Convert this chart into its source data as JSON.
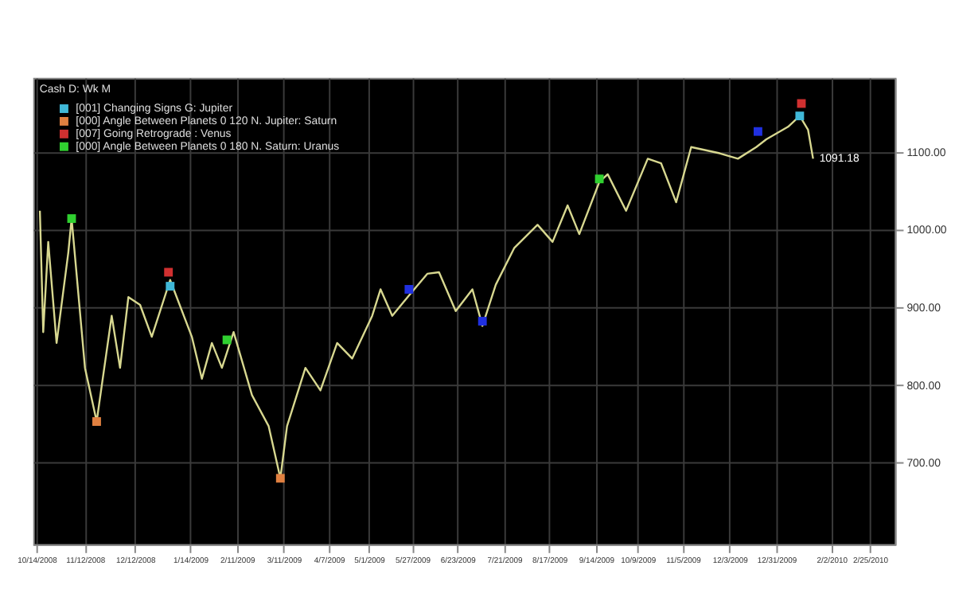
{
  "chart_data": {
    "type": "line",
    "title": "Cash D: Wk M",
    "x": [
      "2008-10-16",
      "2008-10-18",
      "2008-10-21",
      "2008-10-26",
      "2008-11-02",
      "2008-11-04",
      "2008-11-12",
      "2008-11-19",
      "2008-11-28",
      "2008-12-03",
      "2008-12-08",
      "2008-12-15",
      "2008-12-22",
      "2009-01-02",
      "2009-01-15",
      "2009-01-21",
      "2009-01-27",
      "2009-02-02",
      "2009-02-09",
      "2009-02-20",
      "2009-03-02",
      "2009-03-09",
      "2009-03-13",
      "2009-03-24",
      "2009-04-02",
      "2009-04-12",
      "2009-04-21",
      "2009-05-03",
      "2009-05-08",
      "2009-05-15",
      "2009-05-25",
      "2009-06-05",
      "2009-06-12",
      "2009-06-22",
      "2009-07-02",
      "2009-07-08",
      "2009-07-16",
      "2009-07-27",
      "2009-08-10",
      "2009-08-19",
      "2009-08-28",
      "2009-09-04",
      "2009-09-16",
      "2009-09-21",
      "2009-10-02",
      "2009-10-15",
      "2009-10-23",
      "2009-11-01",
      "2009-11-10",
      "2009-11-27",
      "2009-12-08",
      "2009-12-19",
      "2009-12-25",
      "2010-01-07",
      "2010-01-14",
      "2010-01-19",
      "2010-01-22"
    ],
    "series": [
      {
        "color": "#d8d890",
        "values": [
          1024,
          868,
          984,
          854,
          970,
          1014,
          822,
          753,
          889,
          822,
          913,
          903,
          862,
          935,
          862,
          808,
          854,
          822,
          868,
          787,
          747,
          680,
          747,
          822,
          793,
          854,
          834,
          889,
          923,
          889,
          915,
          943,
          945,
          895,
          923,
          876,
          929,
          976,
          1006,
          984,
          1031,
          994,
          1061,
          1071,
          1024,
          1091,
          1085,
          1035,
          1106,
          1098,
          1091,
          1106,
          1116,
          1132,
          1146,
          1128,
          1091
        ]
      },
      {
        "type": "scatter",
        "name": "[001] Changing Signs G: Jupiter",
        "color": "#40b8d8",
        "marker": "square",
        "x": [
          "2009-01-02",
          "2010-01-14"
        ],
        "values": [
          927,
          1146
        ]
      },
      {
        "type": "scatter",
        "name": "[000] Angle Between Planets 0 120 N. Jupiter: Saturn",
        "color": "#e08040",
        "marker": "square",
        "x": [
          "2008-11-19",
          "2009-03-09"
        ],
        "values": [
          753,
          680
        ]
      },
      {
        "type": "scatter",
        "name": "[007] Going Retrograde : Venus",
        "color": "#d03030",
        "marker": "square",
        "x": [
          "2009-01-01",
          "2010-01-15"
        ],
        "values": [
          945,
          1162
        ]
      },
      {
        "type": "scatter",
        "color": "#2030e0",
        "marker": "square",
        "x": [
          "2009-05-25",
          "2009-07-08",
          "2009-12-20"
        ],
        "values": [
          923,
          882,
          1126
        ]
      },
      {
        "type": "scatter",
        "name": "[000] Angle Between Planets 0 180 N. Saturn: Uranus",
        "color": "#30d030",
        "marker": "square",
        "x": [
          "2008-11-04",
          "2009-02-05",
          "2009-09-16"
        ],
        "values": [
          1014,
          858,
          1065
        ]
      }
    ],
    "xlim": [
      "2008-10-12",
      "2010-03-12"
    ],
    "xticks": [
      {
        "value": "2008-10-14",
        "label": "10/14/2008"
      },
      {
        "value": "2008-11-12",
        "label": "11/12/2008"
      },
      {
        "value": "2008-12-12",
        "label": "12/12/2008"
      },
      {
        "value": "2009-01-14",
        "label": "1/14/2009"
      },
      {
        "value": "2009-02-11",
        "label": "2/11/2009"
      },
      {
        "value": "2009-03-11",
        "label": "3/11/2009"
      },
      {
        "value": "2009-04-07",
        "label": "4/7/2009"
      },
      {
        "value": "2009-05-01",
        "label": "5/1/2009"
      },
      {
        "value": "2009-05-27",
        "label": "5/27/2009"
      },
      {
        "value": "2009-06-23",
        "label": "6/23/2009"
      },
      {
        "value": "2009-07-21",
        "label": "7/21/2009"
      },
      {
        "value": "2009-08-17",
        "label": "8/17/2009"
      },
      {
        "value": "2009-09-14",
        "label": "9/14/2009"
      },
      {
        "value": "2009-10-09",
        "label": "10/9/2009"
      },
      {
        "value": "2009-11-05",
        "label": "11/5/2009"
      },
      {
        "value": "2009-12-03",
        "label": "12/3/2009"
      },
      {
        "value": "2009-12-31",
        "label": "12/31/2009"
      },
      {
        "value": "2010-02-02",
        "label": "2/2/2010"
      },
      {
        "value": "2010-02-25",
        "label": "2/25/2010"
      }
    ],
    "ylim": [
      595,
      1195
    ],
    "yticks": [
      {
        "value": 700,
        "label": "700.00"
      },
      {
        "value": 800,
        "label": "800.00"
      },
      {
        "value": 900,
        "label": "900.00"
      },
      {
        "value": 1000,
        "label": "1000.00"
      },
      {
        "value": 1100,
        "label": "1100.00"
      }
    ],
    "annotations": [
      {
        "text": "1091.18",
        "x": "2010-01-22",
        "y": 1091
      }
    ],
    "grid": true,
    "legend": "top left"
  }
}
